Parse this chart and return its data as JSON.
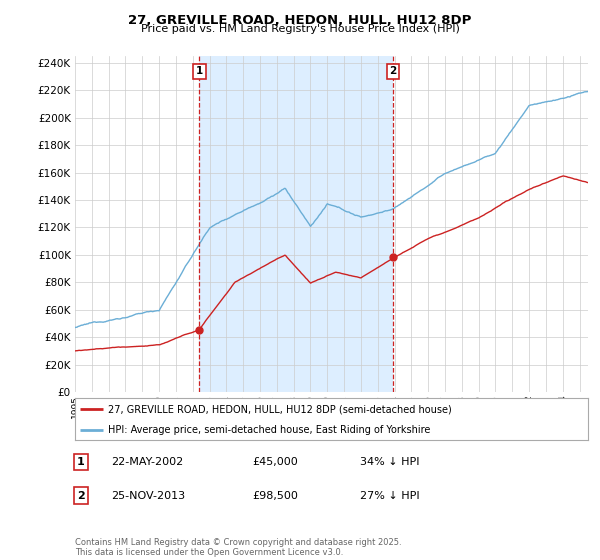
{
  "title": "27, GREVILLE ROAD, HEDON, HULL, HU12 8DP",
  "subtitle": "Price paid vs. HM Land Registry's House Price Index (HPI)",
  "ylim": [
    0,
    245000
  ],
  "yticks": [
    0,
    20000,
    40000,
    60000,
    80000,
    100000,
    120000,
    140000,
    160000,
    180000,
    200000,
    220000,
    240000
  ],
  "hpi_color": "#6baed6",
  "price_color": "#cc2222",
  "shade_color": "#ddeeff",
  "sale1_x": 2002.39,
  "sale1_price": 45000,
  "sale1_label": "1",
  "sale1_date_str": "22-MAY-2002",
  "sale1_pct": "34%",
  "sale2_x": 2013.9,
  "sale2_price": 98500,
  "sale2_label": "2",
  "sale2_date_str": "25-NOV-2013",
  "sale2_pct": "27%",
  "legend1": "27, GREVILLE ROAD, HEDON, HULL, HU12 8DP (semi-detached house)",
  "legend2": "HPI: Average price, semi-detached house, East Riding of Yorkshire",
  "footnote": "Contains HM Land Registry data © Crown copyright and database right 2025.\nThis data is licensed under the Open Government Licence v3.0.",
  "background_color": "#ffffff",
  "grid_color": "#cccccc",
  "xmin": 1995,
  "xmax": 2025.5
}
